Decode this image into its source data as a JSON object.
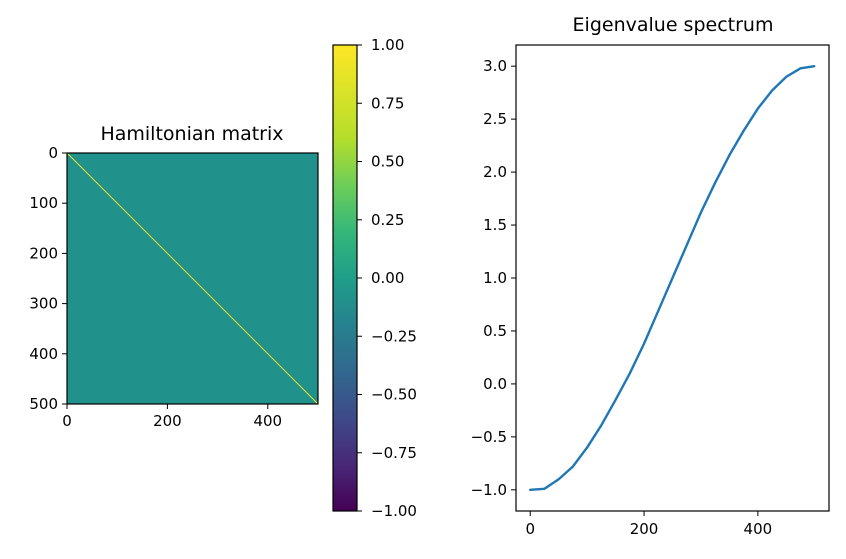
{
  "chart_data": [
    {
      "type": "heatmap",
      "title": "Hamiltonian matrix",
      "matrix_size": 500,
      "description_values": {
        "diagonal_value": 1.0,
        "off_diagonal_value": 0.0
      },
      "xlim": [
        0,
        500
      ],
      "ylim": [
        500,
        0
      ],
      "x_ticks": [
        0,
        200,
        400
      ],
      "x_tick_labels": [
        "0",
        "200",
        "400"
      ],
      "y_ticks": [
        0,
        100,
        200,
        300,
        400,
        500
      ],
      "y_tick_labels": [
        "0",
        "100",
        "200",
        "300",
        "400",
        "500"
      ],
      "colormap": "viridis",
      "colors": {
        "background_cell": "#21918c",
        "diagonal": "#fde725"
      },
      "colorbar": {
        "vmin": -1.0,
        "vmax": 1.0,
        "ticks": [
          -1.0,
          -0.75,
          -0.5,
          -0.25,
          0.0,
          0.25,
          0.5,
          0.75,
          1.0
        ],
        "tick_labels": [
          "−1.00",
          "−0.75",
          "−0.50",
          "−0.25",
          "0.00",
          "0.25",
          "0.50",
          "0.75",
          "1.00"
        ]
      }
    },
    {
      "type": "line",
      "title": "Eigenvalue spectrum",
      "xlabel": "",
      "ylabel": "",
      "x_range": [
        0,
        499
      ],
      "xlim": [
        -25,
        525
      ],
      "ylim": [
        -1.2,
        3.2
      ],
      "x_ticks": [
        0,
        200,
        400
      ],
      "x_tick_labels": [
        "0",
        "200",
        "400"
      ],
      "y_ticks": [
        -1.0,
        -0.5,
        0.0,
        0.5,
        1.0,
        1.5,
        2.0,
        2.5,
        3.0
      ],
      "y_tick_labels": [
        "−1.0",
        "−0.5",
        "0.0",
        "0.5",
        "1.0",
        "1.5",
        "2.0",
        "2.5",
        "3.0"
      ],
      "series": [
        {
          "color": "#1f77b4",
          "x": [
            0,
            25,
            50,
            75,
            100,
            125,
            150,
            175,
            200,
            225,
            250,
            275,
            300,
            325,
            350,
            375,
            400,
            425,
            450,
            475,
            499
          ],
          "values": [
            -1.0,
            -0.99,
            -0.9,
            -0.78,
            -0.6,
            -0.39,
            -0.15,
            0.1,
            0.38,
            0.69,
            1.0,
            1.31,
            1.62,
            1.9,
            2.16,
            2.39,
            2.6,
            2.77,
            2.9,
            2.98,
            3.0
          ]
        }
      ]
    }
  ]
}
